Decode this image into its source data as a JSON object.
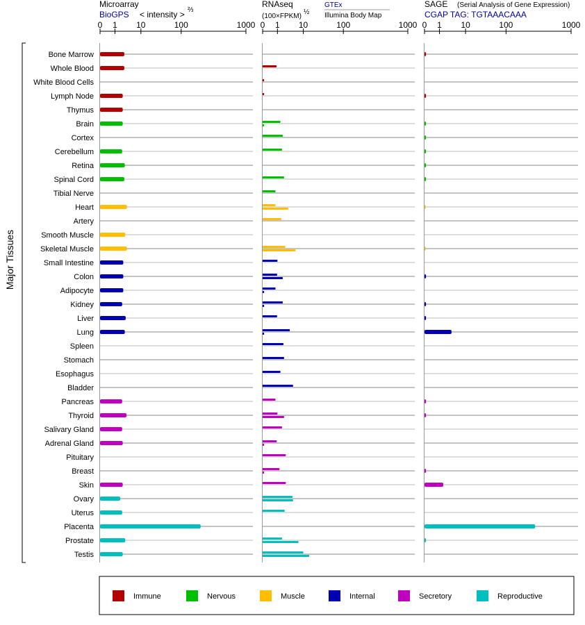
{
  "headers": {
    "microarray_title": "Microarray",
    "microarray_source": "BioGPS",
    "microarray_unit": "< intensity >",
    "microarray_unit_exp": "⅔",
    "rnaseq_title": "RNAseq",
    "rnaseq_unit": "(100×FPKM)",
    "rnaseq_unit_exp": "½",
    "rnaseq_source_1": "GTEx",
    "rnaseq_source_2": "Illumina Body Map",
    "sage_title": "SAGE",
    "sage_subtitle": "(Serial Analysis of Gene Expression)",
    "sage_tag": "CGAP TAG: TGTAAACAAA"
  },
  "y_axis_label": "Major Tissues",
  "legend": [
    {
      "label": "Immune",
      "color": "#b30000"
    },
    {
      "label": "Nervous",
      "color": "#00bf00"
    },
    {
      "label": "Muscle",
      "color": "#ffbf00"
    },
    {
      "label": "Internal",
      "color": "#0000b3"
    },
    {
      "label": "Secretory",
      "color": "#bf00bf"
    },
    {
      "label": "Reproductive",
      "color": "#00bfbf"
    }
  ],
  "chart_data": {
    "type": "bar",
    "orientation": "horizontal",
    "x_ticks": [
      "0",
      "1",
      "10",
      "100",
      "1000"
    ],
    "xlim": [
      0,
      1000
    ],
    "categories": [
      "Bone Marrow",
      "Whole Blood",
      "White Blood Cells",
      "Lymph Node",
      "Thymus",
      "Brain",
      "Cortex",
      "Cerebellum",
      "Retina",
      "Spinal Cord",
      "Tibial Nerve",
      "Heart",
      "Artery",
      "Smooth Muscle",
      "Skeletal Muscle",
      "Small Intestine",
      "Colon",
      "Adipocyte",
      "Kidney",
      "Liver",
      "Lung",
      "Spleen",
      "Stomach",
      "Esophagus",
      "Bladder",
      "Pancreas",
      "Thyroid",
      "Salivary Gland",
      "Adrenal Gland",
      "Pituitary",
      "Breast",
      "Skin",
      "Ovary",
      "Uterus",
      "Placenta",
      "Prostate",
      "Testis"
    ],
    "groups": [
      "Immune",
      "Immune",
      "Immune",
      "Immune",
      "Immune",
      "Nervous",
      "Nervous",
      "Nervous",
      "Nervous",
      "Nervous",
      "Nervous",
      "Muscle",
      "Muscle",
      "Muscle",
      "Muscle",
      "Internal",
      "Internal",
      "Internal",
      "Internal",
      "Internal",
      "Internal",
      "Internal",
      "Internal",
      "Internal",
      "Internal",
      "Secretory",
      "Secretory",
      "Secretory",
      "Secretory",
      "Secretory",
      "Secretory",
      "Secretory",
      "Reproductive",
      "Reproductive",
      "Reproductive",
      "Reproductive",
      "Reproductive"
    ],
    "series": [
      {
        "name": "Microarray",
        "values": [
          2.3,
          2.3,
          null,
          2.0,
          2.0,
          2.0,
          null,
          1.9,
          2.4,
          2.3,
          null,
          2.9,
          null,
          2.5,
          2.9,
          2.1,
          2.1,
          2.1,
          1.9,
          2.6,
          2.4,
          null,
          null,
          null,
          null,
          1.9,
          2.8,
          1.9,
          2.0,
          null,
          null,
          2.0,
          1.6,
          1.9,
          200,
          2.5,
          2.0
        ]
      },
      {
        "name": "RNAseq GTEx",
        "values": [
          null,
          0.88,
          0.01,
          0.01,
          null,
          1.3,
          1.6,
          1.5,
          null,
          1.8,
          0.75,
          0.75,
          1.4,
          null,
          2.0,
          1.0,
          0.95,
          0.75,
          1.6,
          0.95,
          3.0,
          1.7,
          1.8,
          1.3,
          4.0,
          0.75,
          1.0,
          1.5,
          0.9,
          2.1,
          1.2,
          2.1,
          3.8,
          1.9,
          null,
          1.5,
          10
        ]
      },
      {
        "name": "RNAseq Illumina Body Map",
        "values": [
          null,
          null,
          null,
          null,
          null,
          0.01,
          null,
          null,
          null,
          null,
          null,
          2.6,
          null,
          null,
          5.0,
          null,
          1.6,
          0.01,
          0.01,
          null,
          0.01,
          null,
          null,
          null,
          null,
          null,
          1.8,
          null,
          0.01,
          null,
          0.01,
          null,
          4.0,
          null,
          null,
          6.5,
          14
        ]
      },
      {
        "name": "SAGE",
        "values": [
          0.01,
          null,
          null,
          0.01,
          null,
          0.01,
          0.01,
          0.01,
          0.01,
          0.01,
          null,
          0.005,
          null,
          null,
          0.005,
          null,
          0.01,
          null,
          0.01,
          0.01,
          2.9,
          null,
          null,
          null,
          null,
          0.01,
          0.01,
          null,
          null,
          null,
          0.01,
          1.4,
          null,
          null,
          280,
          0.01,
          null
        ]
      }
    ]
  }
}
